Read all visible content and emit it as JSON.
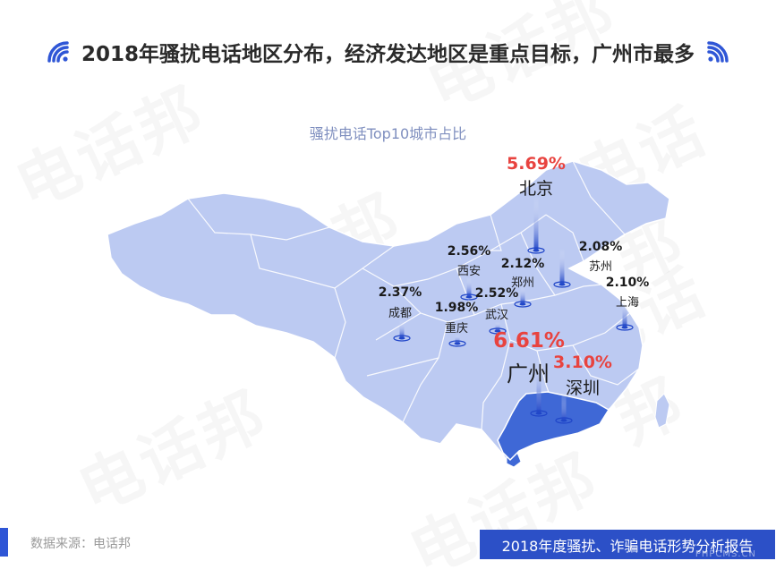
{
  "header": {
    "title": "2018年骚扰电话地区分布，经济发达地区是重点目标，广州市最多",
    "accent_color": "#2f56d6"
  },
  "subtitle": "骚扰电话Top10城市占比",
  "watermark_text": "电话邦",
  "map": {
    "base_color": "#bccaf2",
    "border_color": "#ffffff",
    "highlight_color": "#3f68d6",
    "highlight_region": "广东",
    "icon": "location-pin-icon"
  },
  "cities": [
    {
      "id": "beijing",
      "name": "北京",
      "pct": "5.69%",
      "highlight": true
    },
    {
      "id": "xian",
      "name": "西安",
      "pct": "2.56%",
      "highlight": false
    },
    {
      "id": "zhengzhou",
      "name": "郑州",
      "pct": "2.12%",
      "highlight": false
    },
    {
      "id": "suzhou",
      "name": "苏州",
      "pct": "2.08%",
      "highlight": false
    },
    {
      "id": "shanghai",
      "name": "上海",
      "pct": "2.10%",
      "highlight": false
    },
    {
      "id": "chengdu",
      "name": "成都",
      "pct": "2.37%",
      "highlight": false
    },
    {
      "id": "wuhan",
      "name": "武汉",
      "pct": "2.52%",
      "highlight": false
    },
    {
      "id": "chongqing",
      "name": "重庆",
      "pct": "1.98%",
      "highlight": false
    },
    {
      "id": "guangzhou",
      "name": "广州",
      "pct": "6.61%",
      "highlight": true
    },
    {
      "id": "shenzhen",
      "name": "深圳",
      "pct": "3.10%",
      "highlight": true
    }
  ],
  "footer": {
    "source": "数据来源：电话邦",
    "report_title": "2018年度骚扰、诈骗电话形势分析报告",
    "corner_mark": "PHPCMS.CN"
  }
}
